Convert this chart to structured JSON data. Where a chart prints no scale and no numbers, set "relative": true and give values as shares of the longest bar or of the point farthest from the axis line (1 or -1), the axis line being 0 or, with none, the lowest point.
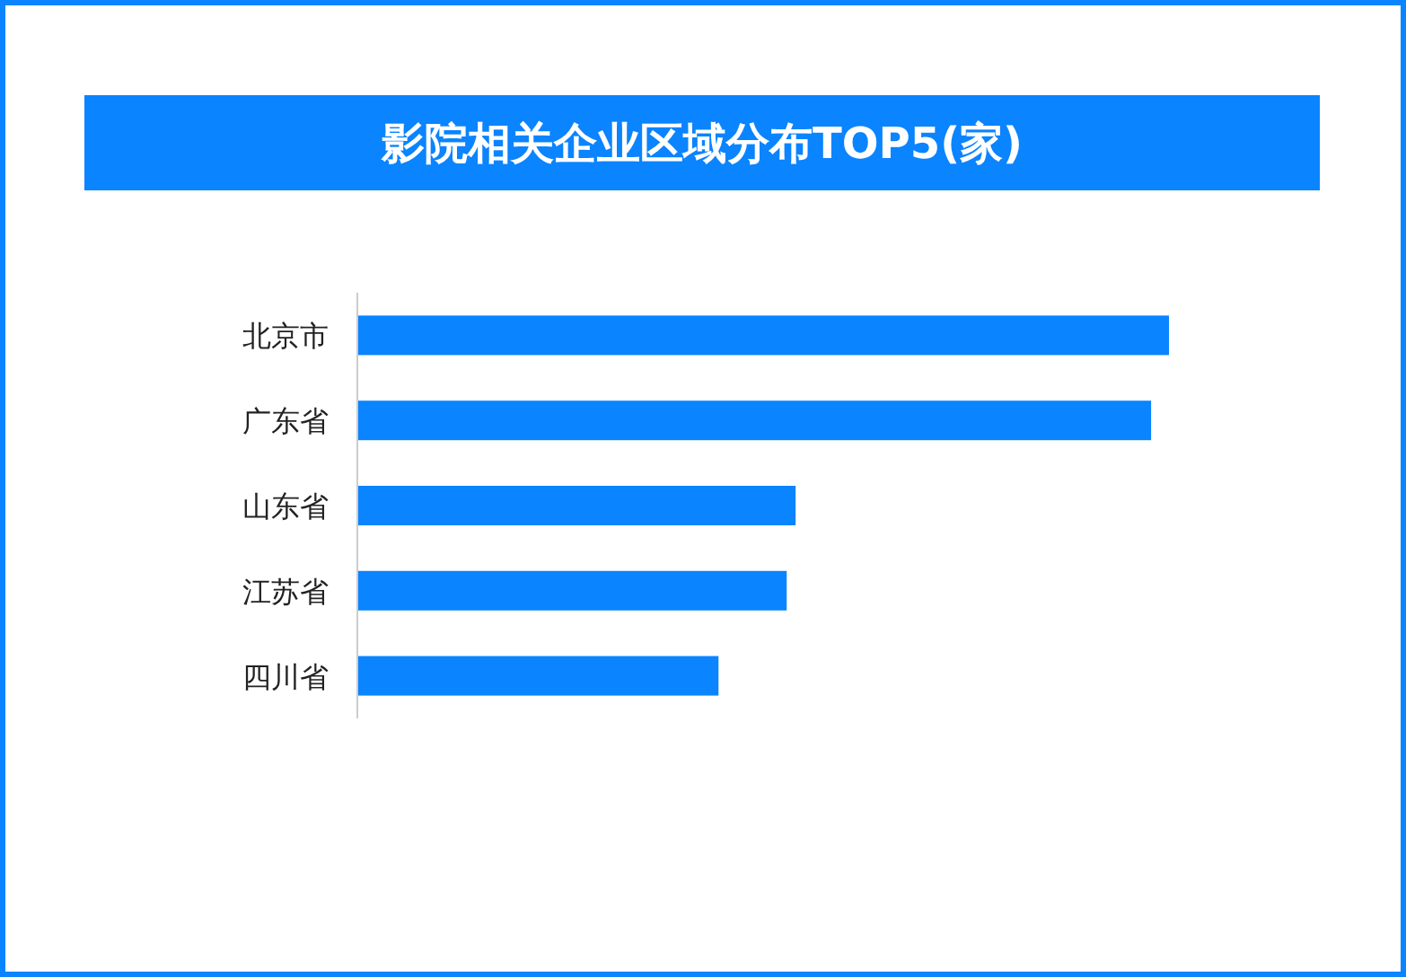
{
  "chart_data": {
    "type": "bar",
    "orientation": "horizontal",
    "relative": true,
    "title": "影院相关企业区域分布TOP5(家)",
    "categories": [
      "北京市",
      "广东省",
      "山东省",
      "江苏省",
      "四川省"
    ],
    "values": [
      1,
      0.978,
      0.54,
      0.529,
      0.445
    ],
    "color": "#0a84ff"
  }
}
